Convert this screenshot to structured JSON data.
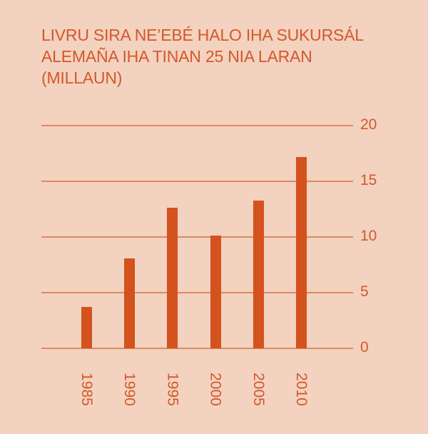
{
  "title": "LIVRU SIRA NE’EBÉ HALO IHA SUKURSÁL ALEMAÑA IHA TINAN 25 NIA LARAN (MILLAUN)",
  "colors": {
    "background": "#f3d2bf",
    "bar": "#d4521e",
    "text": "#d4582a",
    "gridline": "#dc8a63"
  },
  "chart_data": {
    "type": "bar",
    "title": "LIVRU SIRA NE’EBÉ HALO IHA SUKURSÁL ALEMAÑA IHA TINAN 25 NIA LARAN (MILLAUN)",
    "categories": [
      "1985",
      "1990",
      "1995",
      "2000",
      "2005",
      "2010"
    ],
    "values": [
      3.7,
      8.1,
      12.6,
      10.1,
      13.3,
      17.2
    ],
    "xlabel": "",
    "ylabel": "",
    "ylim": [
      0,
      20
    ],
    "yticks": [
      "0",
      "5",
      "10",
      "15",
      "20"
    ],
    "y_axis_position": "right",
    "x_tick_rotation": 90,
    "grid": true,
    "legend": null
  }
}
